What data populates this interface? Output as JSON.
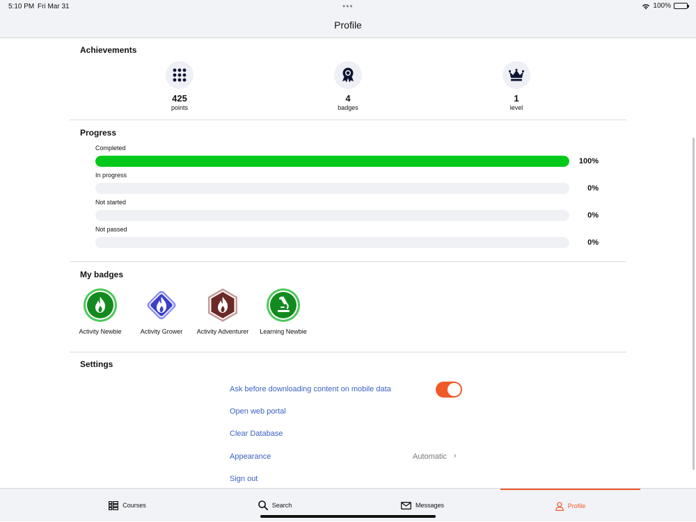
{
  "status": {
    "time": "5:10 PM",
    "date": "Fri Mar 31",
    "battery": "100%"
  },
  "header": {
    "title": "Profile"
  },
  "achievements": {
    "title": "Achievements",
    "items": [
      {
        "value": "425",
        "label": "points",
        "icon": "grid-dots-icon"
      },
      {
        "value": "4",
        "label": "badges",
        "icon": "award-ribbon-icon"
      },
      {
        "value": "1",
        "label": "level",
        "icon": "crown-icon"
      }
    ]
  },
  "progress": {
    "title": "Progress",
    "items": [
      {
        "label": "Completed",
        "percent_text": "100%",
        "fraction": 1.0
      },
      {
        "label": "In progress",
        "percent_text": "0%",
        "fraction": 0
      },
      {
        "label": "Not started",
        "percent_text": "0%",
        "fraction": 0
      },
      {
        "label": "Not passed",
        "percent_text": "0%",
        "fraction": 0
      }
    ],
    "fill_color": "#00c91a"
  },
  "badges": {
    "title": "My badges",
    "items": [
      {
        "label": "Activity Newbie",
        "shape": "circle",
        "color": "#138a1f",
        "icon": "flame-icon"
      },
      {
        "label": "Activity Grower",
        "shape": "diamond",
        "color": "#3b3fc9",
        "icon": "flame-icon"
      },
      {
        "label": "Activity Adventurer",
        "shape": "hexagon",
        "color": "#6b2a26",
        "icon": "flame-icon"
      },
      {
        "label": "Learning Newbie",
        "shape": "circle",
        "color": "#138a1f",
        "icon": "microscope-icon"
      }
    ]
  },
  "settings": {
    "title": "Settings",
    "download_prompt": {
      "label": "Ask before downloading content on mobile data",
      "enabled": true
    },
    "web_portal": "Open web portal",
    "clear_db": "Clear Database",
    "appearance": {
      "label": "Appearance",
      "value": "Automatic"
    },
    "sign_out": "Sign out",
    "accent": "#f05a28",
    "link_color": "#3a62c2"
  },
  "tabs": [
    {
      "label": "Courses",
      "icon": "courses-grid-icon"
    },
    {
      "label": "Search",
      "icon": "search-icon"
    },
    {
      "label": "Messages",
      "icon": "envelope-icon"
    },
    {
      "label": "Profile",
      "icon": "user-icon",
      "active": true
    }
  ]
}
